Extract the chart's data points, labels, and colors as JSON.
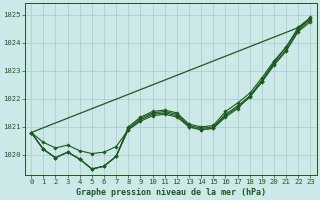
{
  "title": "Graphe pression niveau de la mer (hPa)",
  "hours": [
    0,
    1,
    2,
    3,
    4,
    5,
    6,
    7,
    8,
    9,
    10,
    11,
    12,
    13,
    14,
    15,
    16,
    17,
    18,
    19,
    20,
    21,
    22,
    23
  ],
  "ylim": [
    1019.3,
    1025.4
  ],
  "yticks": [
    1020,
    1021,
    1022,
    1023,
    1024,
    1025
  ],
  "line_wavy1": [
    1020.8,
    1020.2,
    1019.9,
    1020.1,
    1019.85,
    1019.5,
    1019.6,
    1019.95,
    1021.0,
    1021.35,
    1021.55,
    1021.6,
    1021.5,
    1021.1,
    1021.0,
    1021.05,
    1021.55,
    1021.85,
    1022.2,
    1022.75,
    1023.35,
    1023.85,
    1024.55,
    1024.9
  ],
  "line_wavy2": [
    1020.8,
    1020.2,
    1019.9,
    1020.1,
    1019.85,
    1019.5,
    1019.6,
    1019.95,
    1020.95,
    1021.3,
    1021.5,
    1021.55,
    1021.45,
    1021.05,
    1020.95,
    1021.0,
    1021.45,
    1021.75,
    1022.1,
    1022.65,
    1023.25,
    1023.75,
    1024.45,
    1024.82
  ],
  "line_wavy3": [
    1020.8,
    1020.2,
    1019.9,
    1020.1,
    1019.85,
    1019.5,
    1019.6,
    1019.95,
    1020.9,
    1021.25,
    1021.45,
    1021.5,
    1021.4,
    1021.0,
    1020.9,
    1020.95,
    1021.4,
    1021.7,
    1022.05,
    1022.6,
    1023.2,
    1023.7,
    1024.4,
    1024.75
  ],
  "line_upper": [
    1020.8,
    1020.45,
    1020.25,
    1020.35,
    1020.15,
    1020.05,
    1020.1,
    1020.3,
    1020.9,
    1021.2,
    1021.4,
    1021.45,
    1021.35,
    1021.0,
    1020.9,
    1020.95,
    1021.35,
    1021.65,
    1022.1,
    1022.65,
    1023.3,
    1023.85,
    1024.5,
    1024.88
  ],
  "line_straight": [
    1020.8,
    1020.97,
    1021.14,
    1021.31,
    1021.48,
    1021.65,
    1021.82,
    1021.99,
    1022.16,
    1022.33,
    1022.5,
    1022.67,
    1022.84,
    1023.01,
    1023.18,
    1023.35,
    1023.52,
    1023.69,
    1023.86,
    1024.03,
    1024.2,
    1024.37,
    1024.54,
    1024.88
  ],
  "bg_color": "#cce8e8",
  "grid_color": "#aacccc",
  "line_color": "#1a5c1a",
  "text_color": "#1a5c1a",
  "title_fontsize": 6.0,
  "tick_fontsize": 5.2
}
